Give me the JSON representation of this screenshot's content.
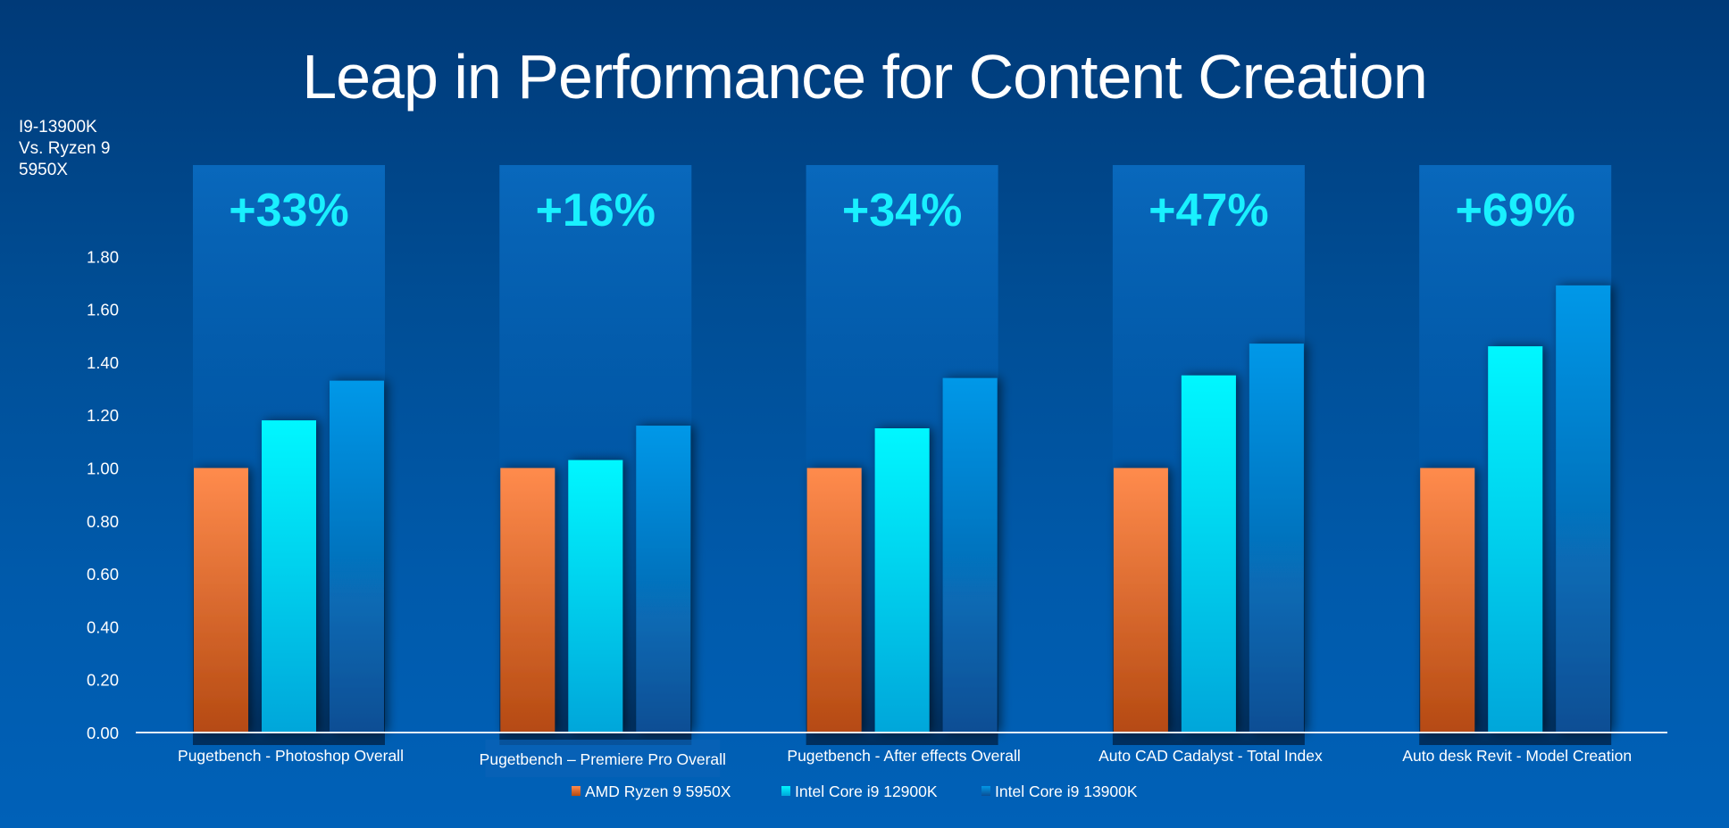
{
  "chart_data": {
    "type": "bar",
    "title": "Leap in Performance for Content Creation",
    "ylabel_lines": [
      "I9-13900K",
      "Vs. Ryzen 9",
      "5950X"
    ],
    "xlabel": "",
    "ylim": [
      0,
      1.8
    ],
    "yticks": [
      "0.00",
      "0.20",
      "0.40",
      "0.60",
      "0.80",
      "1.00",
      "1.20",
      "1.40",
      "1.60",
      "1.80"
    ],
    "ytick_values": [
      0,
      0.2,
      0.4,
      0.6,
      0.8,
      1.0,
      1.2,
      1.4,
      1.6,
      1.8
    ],
    "grid": false,
    "legend_position": "bottom",
    "categories": [
      "Pugetbench - Photoshop Overall",
      "Pugetbench – Premiere Pro Overall",
      "Pugetbench - After effects Overall",
      "Auto CAD Cadalyst - Total Index",
      "Auto desk Revit - Model Creation"
    ],
    "annotations": [
      "+33%",
      "+16%",
      "+34%",
      "+47%",
      "+69%"
    ],
    "series": [
      {
        "name": "AMD Ryzen 9 5950X",
        "values": [
          1.0,
          1.0,
          1.0,
          1.0,
          1.0
        ],
        "color_top": "#ff8b4d",
        "color_bottom": "#b54a12"
      },
      {
        "name": "Intel Core i9 12900K",
        "values": [
          1.18,
          1.03,
          1.15,
          1.35,
          1.46
        ],
        "color_top": "#00f7ff",
        "color_bottom": "#00a6da"
      },
      {
        "name": "Intel Core i9 13900K",
        "values": [
          1.33,
          1.16,
          1.34,
          1.47,
          1.69
        ],
        "color_top": "#0298e8",
        "color_bottom": "#0a4e94"
      }
    ]
  },
  "colors": {
    "annotation": "#19f0ff",
    "panel_top": "#0a6bc0",
    "axis_line": "#e8eef8"
  }
}
